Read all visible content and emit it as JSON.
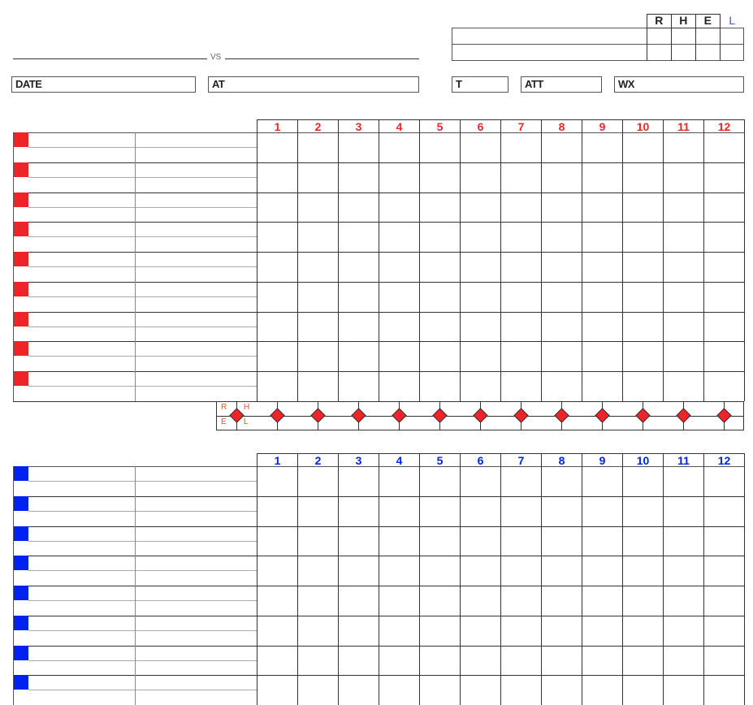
{
  "header": {
    "vs_label": "VS",
    "score_columns": [
      "R",
      "H",
      "E",
      "L"
    ],
    "fields": [
      {
        "label": "DATE"
      },
      {
        "label": "AT"
      },
      {
        "label": "T"
      },
      {
        "label": "ATT"
      },
      {
        "label": "WX"
      }
    ]
  },
  "away": {
    "color": "#ee2528",
    "innings": [
      "1",
      "2",
      "3",
      "4",
      "5",
      "6",
      "7",
      "8",
      "9",
      "10",
      "11",
      "12"
    ],
    "batter_rows": 9
  },
  "home": {
    "color": "#0022ee",
    "innings": [
      "1",
      "2",
      "3",
      "4",
      "5",
      "6",
      "7",
      "8",
      "9",
      "10",
      "11",
      "12"
    ],
    "batter_rows": 8
  },
  "summary": {
    "labels": [
      "R",
      "H",
      "E",
      "L"
    ],
    "diamond_color": "#ee2528",
    "label_color": "#e8502a"
  }
}
